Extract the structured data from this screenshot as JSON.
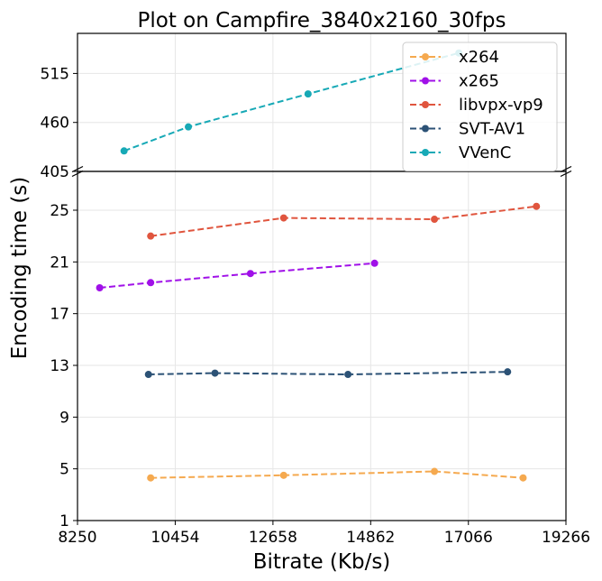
{
  "chart_data": {
    "type": "line",
    "title": "Plot on Campfire_3840x2160_30fps",
    "xlabel": "Bitrate (Kb/s)",
    "ylabel": "Encoding time (s)",
    "xlim": [
      8250,
      19266
    ],
    "x_ticks": [
      8250,
      10454,
      12658,
      14862,
      17066,
      19266
    ],
    "y_upper_lim": [
      405,
      560
    ],
    "y_upper_ticks": [
      405,
      460,
      515
    ],
    "y_lower_lim": [
      1,
      28
    ],
    "y_lower_ticks": [
      1,
      5,
      9,
      13,
      17,
      21,
      25
    ],
    "broken_axis": true,
    "grid": true,
    "legend_position": "top-right",
    "line_style": "dashed",
    "series": [
      {
        "name": "x264",
        "color": "#f5a94f",
        "panel": "lower",
        "points": [
          [
            9900,
            4.3
          ],
          [
            12900,
            4.5
          ],
          [
            16300,
            4.8
          ],
          [
            18300,
            4.3
          ]
        ]
      },
      {
        "name": "x265",
        "color": "#a010e8",
        "panel": "lower",
        "points": [
          [
            8750,
            19.0
          ],
          [
            9900,
            19.4
          ],
          [
            12150,
            20.1
          ],
          [
            14950,
            20.9
          ]
        ]
      },
      {
        "name": "libvpx-vp9",
        "color": "#e0553e",
        "panel": "lower",
        "points": [
          [
            9900,
            23.0
          ],
          [
            12900,
            24.4
          ],
          [
            16300,
            24.3
          ],
          [
            18600,
            25.3
          ]
        ]
      },
      {
        "name": "SVT-AV1",
        "color": "#2c5276",
        "panel": "lower",
        "points": [
          [
            9850,
            12.3
          ],
          [
            11350,
            12.4
          ],
          [
            14350,
            12.3
          ],
          [
            17950,
            12.5
          ]
        ]
      },
      {
        "name": "VVenC",
        "color": "#17a9b6",
        "panel": "upper",
        "points": [
          [
            9300,
            428
          ],
          [
            10750,
            455
          ],
          [
            13450,
            492
          ],
          [
            16850,
            538
          ]
        ]
      }
    ]
  }
}
